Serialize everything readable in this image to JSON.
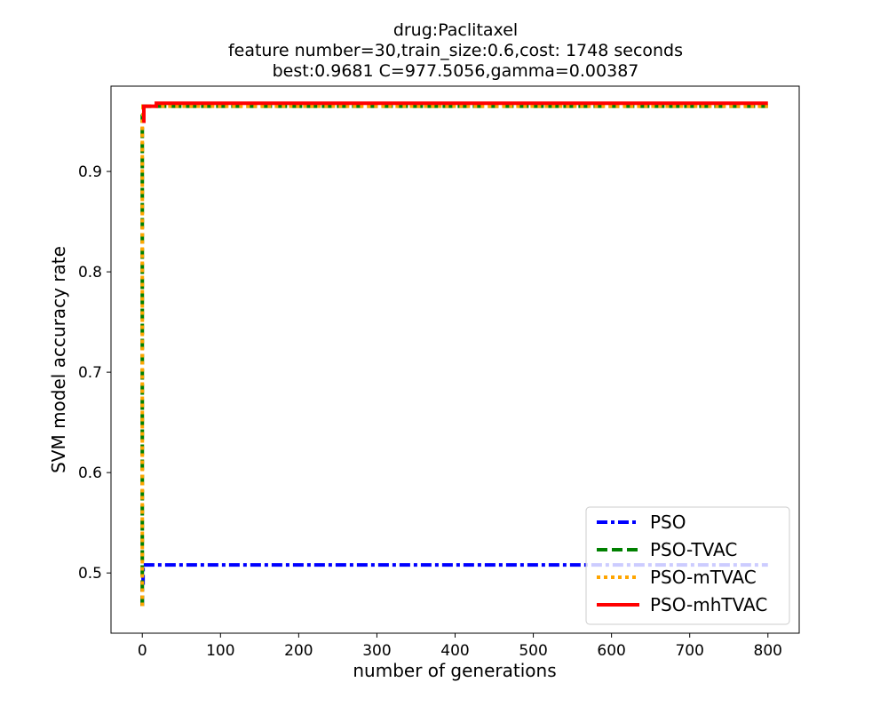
{
  "chart_data": {
    "type": "line",
    "title_lines": [
      "drug:Paclitaxel",
      "feature number=30,train_size:0.6,cost: 1748 seconds",
      "best:0.9681  C=977.5056,gamma=0.00387"
    ],
    "xlabel": "number of generations",
    "ylabel": "SVM model accuracy rate",
    "xlim": [
      -40,
      840
    ],
    "ylim": [
      0.44,
      0.985
    ],
    "xticks": [
      0,
      100,
      200,
      300,
      400,
      500,
      600,
      700,
      800
    ],
    "yticks": [
      0.5,
      0.6,
      0.7,
      0.8,
      0.9
    ],
    "grid": false,
    "legend_position": "lower-right",
    "series": [
      {
        "name": "PSO",
        "color": "#0000ff",
        "dash": "dashdot",
        "x": [
          0,
          0,
          1,
          1,
          800
        ],
        "y": [
          0.467,
          0.49,
          0.49,
          0.508,
          0.508
        ]
      },
      {
        "name": "PSO-TVAC",
        "color": "#008000",
        "dash": "dashed",
        "x": [
          0,
          0,
          1,
          1,
          800
        ],
        "y": [
          0.467,
          0.955,
          0.955,
          0.965,
          0.965
        ]
      },
      {
        "name": "PSO-mTVAC",
        "color": "#ffa500",
        "dash": "dotted",
        "x": [
          0,
          0,
          1,
          1,
          800
        ],
        "y": [
          0.467,
          0.955,
          0.955,
          0.965,
          0.965
        ]
      },
      {
        "name": "PSO-mhTVAC",
        "color": "#ff0000",
        "dash": "solid",
        "x": [
          0,
          0,
          2,
          2,
          18,
          18,
          800
        ],
        "y": [
          0.95,
          0.95,
          0.95,
          0.965,
          0.965,
          0.968,
          0.968
        ]
      }
    ]
  }
}
